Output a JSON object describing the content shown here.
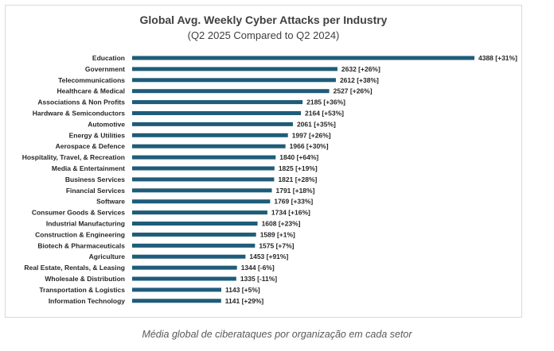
{
  "caption": "Média global de ciberataques por organização em cada setor",
  "chart_data": {
    "type": "bar",
    "orientation": "horizontal",
    "title": "Global Avg. Weekly Cyber Attacks per Industry",
    "subtitle": "(Q2 2025 Compared to Q2 2024)",
    "xlabel": "",
    "ylabel": "",
    "grid": false,
    "legend": "none",
    "bar_color": "#1f5c7a",
    "xlim": [
      0,
      4388
    ],
    "categories": [
      "Education",
      "Government",
      "Telecommunications",
      "Healthcare & Medical",
      "Associations & Non Profits",
      "Hardware & Semiconductors",
      "Automotive",
      "Energy & Utilities",
      "Aerospace & Defence",
      "Hospitality, Travel, & Recreation",
      "Media & Entertainment",
      "Business Services",
      "Financial Services",
      "Software",
      "Consumer Goods & Services",
      "Industrial Manufacturing",
      "Construction & Engineering",
      "Biotech & Pharmaceuticals",
      "Agriculture",
      "Real Estate, Rentals, & Leasing",
      "Wholesale & Distribution",
      "Transportation & Logistics",
      "Information Technology"
    ],
    "values": [
      4388,
      2632,
      2612,
      2527,
      2185,
      2164,
      2061,
      1997,
      1966,
      1840,
      1825,
      1821,
      1791,
      1769,
      1734,
      1608,
      1589,
      1575,
      1453,
      1344,
      1335,
      1143,
      1141
    ],
    "change": [
      "+31%",
      "+26%",
      "+38%",
      "+26%",
      "+36%",
      "+53%",
      "+35%",
      "+26%",
      "+30%",
      "+64%",
      "+19%",
      "+28%",
      "+18%",
      "+33%",
      "+16%",
      "+23%",
      "+1%",
      "+7%",
      "+91%",
      "-6%",
      "-11%",
      "+5%",
      "+29%"
    ],
    "data_labels": [
      "4388 [+31%]",
      "2632 [+26%]",
      "2612 [+38%]",
      "2527 [+26%]",
      "2185 [+36%]",
      "2164 [+53%]",
      "2061 [+35%]",
      "1997 [+26%]",
      "1966 [+30%]",
      "1840 [+64%]",
      "1825 [+19%]",
      "1821 [+28%]",
      "1791 [+18%]",
      "1769 [+33%]",
      "1734 [+16%]",
      "1608 [+23%]",
      "1589 [+1%]",
      "1575 [+7%]",
      "1453 [+91%]",
      "1344 [-6%]",
      "1335 [-11%]",
      "1143 [+5%]",
      "1141 [+29%]"
    ]
  }
}
